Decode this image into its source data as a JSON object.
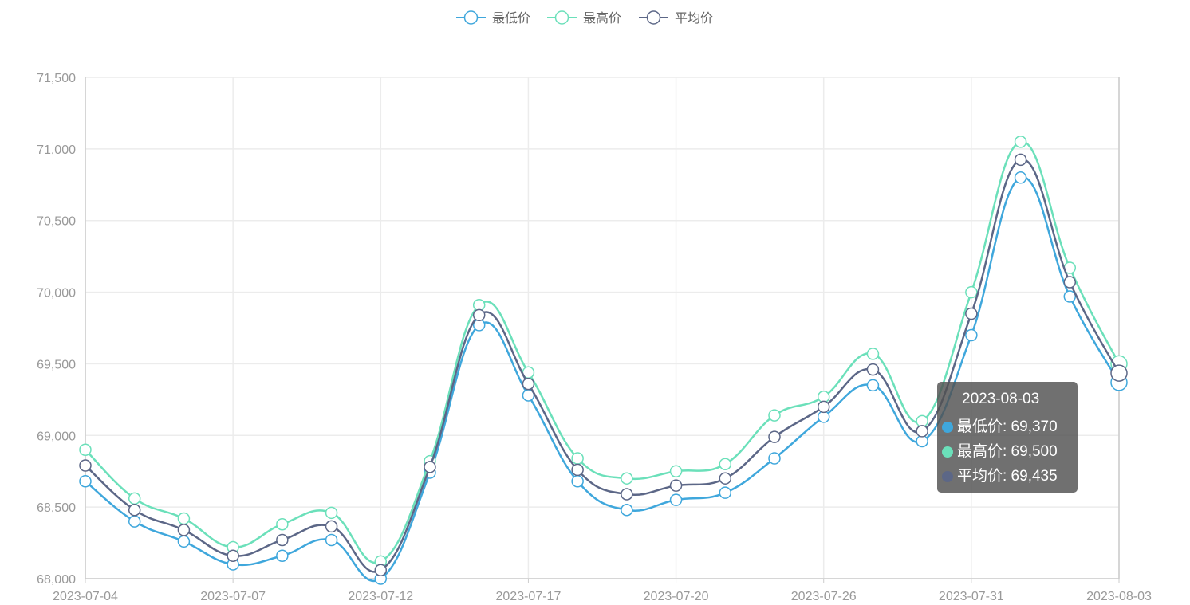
{
  "chart_data": {
    "type": "line",
    "smooth": true,
    "x": [
      "2023-07-04",
      "2023-07-05",
      "2023-07-06",
      "2023-07-07",
      "2023-07-10",
      "2023-07-11",
      "2023-07-12",
      "2023-07-13",
      "2023-07-14",
      "2023-07-17",
      "2023-07-18",
      "2023-07-19",
      "2023-07-20",
      "2023-07-21",
      "2023-07-24",
      "2023-07-26",
      "2023-07-27",
      "2023-07-28",
      "2023-07-31",
      "2023-08-01",
      "2023-08-02",
      "2023-08-03"
    ],
    "x_tick_labels": [
      "2023-07-04",
      "2023-07-07",
      "2023-07-12",
      "2023-07-17",
      "2023-07-20",
      "2023-07-26",
      "2023-07-31",
      "2023-08-03"
    ],
    "y_tick_labels": [
      "68,000",
      "68,500",
      "69,000",
      "69,500",
      "70,000",
      "70,500",
      "71,000",
      "71,500"
    ],
    "ylim": [
      68000,
      71500
    ],
    "grid": true,
    "legend_position": "top-center",
    "series": [
      {
        "name": "最低价",
        "color": "#3FA7DC",
        "values": [
          68680,
          68400,
          68260,
          68100,
          68160,
          68270,
          68000,
          68740,
          69770,
          69280,
          68680,
          68480,
          68550,
          68600,
          68840,
          69130,
          69350,
          68960,
          69700,
          70800,
          69970,
          69370
        ]
      },
      {
        "name": "最高价",
        "color": "#6BE0BA",
        "values": [
          68900,
          68560,
          68420,
          68220,
          68380,
          68460,
          68120,
          68820,
          69910,
          69440,
          68840,
          68700,
          68750,
          68800,
          69140,
          69270,
          69570,
          69100,
          70000,
          71050,
          70170,
          69500
        ]
      },
      {
        "name": "平均价",
        "color": "#5C6787",
        "values": [
          68790,
          68480,
          68340,
          68160,
          68270,
          68365,
          68060,
          68780,
          69840,
          69360,
          68760,
          68590,
          68650,
          68700,
          68990,
          69200,
          69460,
          69030,
          69850,
          70925,
          70070,
          69435
        ]
      }
    ],
    "tooltip": {
      "title": "2023-08-03",
      "rows": [
        {
          "label": "最低价: 69,370",
          "color": "#3FA7DC"
        },
        {
          "label": "最高价: 69,500",
          "color": "#6BE0BA"
        },
        {
          "label": "平均价: 69,435",
          "color": "#5C6787"
        }
      ]
    }
  }
}
